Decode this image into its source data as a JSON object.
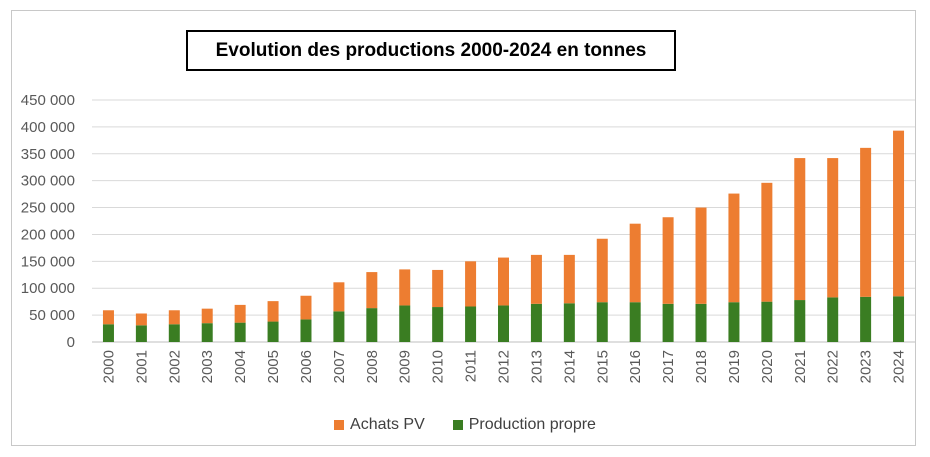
{
  "colors": {
    "achats": "#ED7D31",
    "production": "#3A7D22",
    "grid": "#d9d9d9",
    "axis": "#bfbfbf"
  },
  "chart_data": {
    "type": "bar",
    "stacked": true,
    "title": "Evolution des productions 2000-2024 en tonnes",
    "xlabel": "",
    "ylabel": "",
    "ylim": [
      0,
      450000
    ],
    "yticks": [
      0,
      50000,
      100000,
      150000,
      200000,
      250000,
      300000,
      350000,
      400000,
      450000
    ],
    "ytick_labels": [
      "0",
      "50 000",
      "100 000",
      "150 000",
      "200 000",
      "250 000",
      "300 000",
      "350 000",
      "400 000",
      "450 000"
    ],
    "categories": [
      "2000",
      "2001",
      "2002",
      "2003",
      "2004",
      "2005",
      "2006",
      "2007",
      "2008",
      "2009",
      "2010",
      "2011",
      "2012",
      "2013",
      "2014",
      "2015",
      "2016",
      "2017",
      "2018",
      "2019",
      "2020",
      "2021",
      "2022",
      "2023",
      "2024"
    ],
    "series": [
      {
        "name": "Production propre",
        "values": [
          33000,
          31000,
          33000,
          35000,
          36000,
          38000,
          42000,
          57000,
          63000,
          68000,
          65000,
          66000,
          68000,
          71000,
          72000,
          74000,
          74000,
          71000,
          71000,
          74000,
          75000,
          78000,
          83000,
          84000,
          85000
        ]
      },
      {
        "name": "Achats PV",
        "values": [
          26000,
          22000,
          26000,
          27000,
          33000,
          38000,
          44000,
          54000,
          67000,
          67000,
          69000,
          84000,
          89000,
          91000,
          90000,
          118000,
          146000,
          161000,
          179000,
          202000,
          221000,
          264000,
          259000,
          277000,
          308000
        ]
      }
    ],
    "legend": {
      "position": "bottom",
      "entries": [
        "Achats PV",
        "Production propre"
      ]
    },
    "grid": true
  }
}
